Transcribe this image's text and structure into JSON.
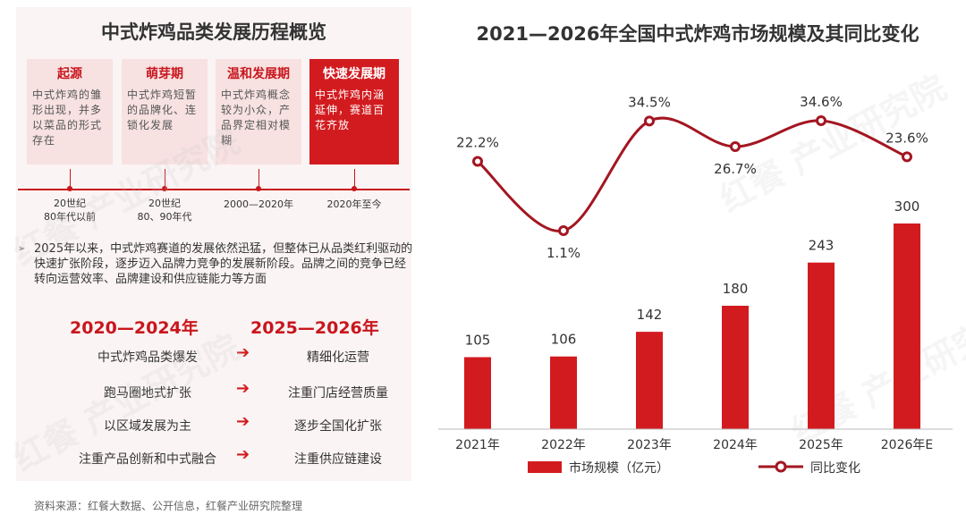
{
  "left": {
    "title": "中式炸鸡品类发展历程概览",
    "stages": [
      {
        "name": "起源",
        "desc": "中式炸鸡的雏形出现，并多以菜品的形式存在",
        "period": "20世纪\n80年代以前"
      },
      {
        "name": "萌芽期",
        "desc": "中式炸鸡短暂的品牌化、连锁化发展",
        "period": "20世纪\n80、90年代"
      },
      {
        "name": "温和发展期",
        "desc": "中式炸鸡概念较为小众，产品界定相对模糊",
        "period": "2000—2020年"
      },
      {
        "name": "快速发展期",
        "desc": "中式炸鸡内涵延伸，赛道百花齐放",
        "period": "2020年至今"
      }
    ],
    "bullet": "2025年以来，中式炸鸡赛道的发展依然迅猛，但整体已从品类红利驱动的快速扩张阶段，逐步迈入品牌力竞争的发展新阶段。品牌之间的竞争已经转向运营效率、品牌建设和供应链能力等方面",
    "compare": {
      "left_head": "2020—2024年",
      "right_head": "2025—2026年",
      "rows": [
        {
          "from": "中式炸鸡品类爆发",
          "to": "精细化运营"
        },
        {
          "from": "跑马圈地式扩张",
          "to": "注重门店经营质量"
        },
        {
          "from": "以区域发展为主",
          "to": "逐步全国化扩张"
        },
        {
          "from": "注重产品创新和中式融合",
          "to": "注重供应链建设"
        }
      ],
      "arrow": "➔"
    }
  },
  "right": {
    "title": "2021—2026年全国中式炸鸡市场规模及其同比变化"
  },
  "chart_data": {
    "type": "bar",
    "categories": [
      "2021年",
      "2022年",
      "2023年",
      "2024年",
      "2025年",
      "2026年E"
    ],
    "series": [
      {
        "name": "市场规模（亿元）",
        "type": "bar",
        "values": [
          105,
          106,
          142,
          180,
          243,
          300
        ],
        "labels": [
          "105",
          "106",
          "142",
          "180",
          "243",
          "300"
        ],
        "color": "#d21b1f"
      },
      {
        "name": "同比变化",
        "type": "line",
        "values": [
          22.2,
          1.1,
          34.5,
          26.7,
          34.6,
          23.6
        ],
        "labels": [
          "22.2%",
          "1.1%",
          "34.5%",
          "26.7%",
          "34.6%",
          "23.6%"
        ],
        "color": "#a31621"
      }
    ],
    "legend_position": "bottom"
  },
  "source": "资料来源：红餐大数据、公开信息，红餐产业研究院整理",
  "watermark": "红餐 产业研究院"
}
